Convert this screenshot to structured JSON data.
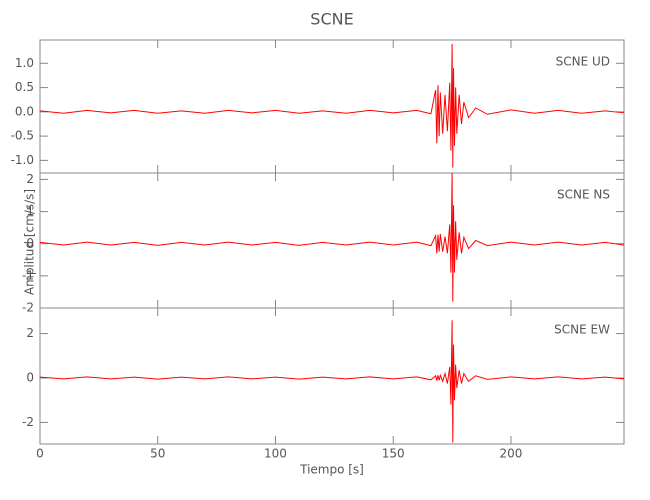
{
  "chart_data": [
    {
      "type": "line",
      "title": "SCNE",
      "label": "SCNE UD",
      "color": "#ff0000",
      "x": [
        0,
        10,
        20,
        30,
        40,
        50,
        60,
        70,
        80,
        90,
        100,
        110,
        120,
        130,
        140,
        150,
        160,
        166,
        168,
        168.5,
        169,
        169.5,
        170,
        171,
        172,
        173,
        174,
        174.5,
        175,
        175.3,
        175.6,
        176,
        176.5,
        177,
        178,
        179,
        180,
        182,
        185,
        190,
        200,
        210,
        220,
        230,
        240,
        248
      ],
      "values": [
        0.02,
        -0.03,
        0.03,
        -0.02,
        0.03,
        -0.03,
        0.02,
        -0.03,
        0.03,
        -0.02,
        0.03,
        -0.03,
        0.02,
        -0.03,
        0.03,
        -0.02,
        0.03,
        -0.04,
        0.45,
        -0.65,
        0.55,
        -0.5,
        0.4,
        -0.45,
        0.35,
        -0.4,
        0.6,
        -0.8,
        1.4,
        -1.15,
        0.9,
        -0.7,
        0.5,
        -0.45,
        0.35,
        -0.25,
        0.2,
        -0.12,
        0.08,
        -0.05,
        0.04,
        -0.03,
        0.03,
        -0.03,
        0.02,
        -0.02
      ],
      "xlim": [
        0,
        248
      ],
      "xticks": [
        0,
        50,
        100,
        150,
        200
      ],
      "ylim": [
        -1.26,
        1.48
      ],
      "yticks": [
        {
          "value": -1,
          "label": "-1.0"
        },
        -0.5,
        {
          "value": 0,
          "label": "0.0"
        },
        0.5,
        {
          "value": 1,
          "label": "1.0"
        }
      ]
    },
    {
      "type": "line",
      "ylabel": "Amplitud [cm/s/s]",
      "label": "SCNE NS",
      "color": "#ff0000",
      "x": [
        0,
        10,
        20,
        30,
        40,
        50,
        60,
        70,
        80,
        90,
        100,
        110,
        120,
        130,
        140,
        150,
        160,
        166,
        168,
        168.5,
        169,
        169.5,
        170,
        171,
        172,
        173,
        174,
        174.5,
        175,
        175.3,
        175.6,
        176,
        176.5,
        177,
        178,
        179,
        180,
        182,
        185,
        190,
        200,
        210,
        220,
        230,
        240,
        248
      ],
      "values": [
        0.04,
        -0.04,
        0.05,
        -0.04,
        0.04,
        -0.05,
        0.04,
        -0.04,
        0.05,
        -0.04,
        0.04,
        -0.05,
        0.04,
        -0.04,
        0.05,
        -0.04,
        0.05,
        -0.06,
        0.25,
        -0.3,
        0.28,
        -0.25,
        0.3,
        -0.25,
        0.22,
        -0.3,
        0.6,
        -0.9,
        2.2,
        -1.8,
        1.2,
        -0.9,
        0.7,
        -0.5,
        0.35,
        -0.3,
        0.2,
        -0.15,
        0.1,
        -0.06,
        0.05,
        -0.04,
        0.05,
        -0.04,
        0.04,
        -0.04
      ],
      "xlim": [
        0,
        248
      ],
      "xticks": [
        0,
        50,
        100,
        150,
        200
      ],
      "ylim": [
        -2,
        2.2
      ],
      "yticks": [
        -2,
        -1,
        0,
        1,
        2
      ]
    },
    {
      "type": "line",
      "xlabel": "Tiempo [s]",
      "label": "SCNE EW",
      "color": "#ff0000",
      "x": [
        0,
        10,
        20,
        30,
        40,
        50,
        60,
        70,
        80,
        90,
        100,
        110,
        120,
        130,
        140,
        150,
        160,
        166,
        168,
        168.5,
        169,
        169.5,
        170,
        171,
        172,
        173,
        174,
        174.5,
        175,
        175.3,
        175.6,
        176,
        176.5,
        177,
        178,
        179,
        180,
        182,
        185,
        190,
        200,
        210,
        220,
        230,
        240,
        248
      ],
      "values": [
        0.04,
        -0.04,
        0.05,
        -0.04,
        0.04,
        -0.05,
        0.04,
        -0.04,
        0.05,
        -0.04,
        0.04,
        -0.05,
        0.04,
        -0.04,
        0.05,
        -0.04,
        0.05,
        -0.08,
        0.1,
        -0.12,
        0.12,
        -0.1,
        0.12,
        -0.15,
        0.2,
        -0.25,
        0.5,
        -1.2,
        2.6,
        -2.9,
        1.5,
        -1.0,
        0.6,
        -0.45,
        0.35,
        -0.25,
        0.2,
        -0.15,
        0.1,
        -0.06,
        0.05,
        -0.04,
        0.05,
        -0.04,
        0.04,
        -0.04
      ],
      "xlim": [
        0,
        248
      ],
      "xticks": [
        0,
        50,
        100,
        150,
        200
      ],
      "ylim": [
        -2.97,
        3.15
      ],
      "yticks": [
        -2,
        0,
        2
      ]
    }
  ]
}
